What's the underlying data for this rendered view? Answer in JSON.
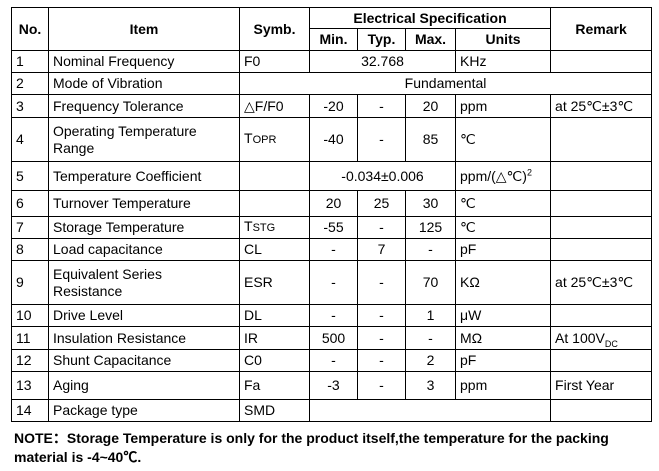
{
  "table": {
    "headers": {
      "no": "No.",
      "item": "Item",
      "symb": "Symb.",
      "elec": "Electrical Specification",
      "remark": "Remark",
      "min": "Min.",
      "typ": "Typ.",
      "max": "Max.",
      "units": "Units"
    },
    "rows": [
      {
        "no": "1",
        "item": "Nominal Frequency",
        "symb": "F0",
        "value": "32.768",
        "units": "KHz",
        "remark": ""
      },
      {
        "no": "2",
        "item": "Mode of Vibration",
        "value": "Fundamental"
      },
      {
        "no": "3",
        "item": "Frequency Tolerance",
        "symb": "△F/F0",
        "min": "-20",
        "typ": "-",
        "max": "20",
        "units": "ppm",
        "remark": "at 25℃±3℃"
      },
      {
        "no": "4",
        "item1": "Operating Temperature",
        "item2": "Range",
        "symb_main": "T",
        "symb_small": "OPR",
        "min": "-40",
        "typ": "-",
        "max": "85",
        "units": "℃",
        "remark": ""
      },
      {
        "no": "5",
        "item": "Temperature Coefficient",
        "symb": "",
        "value": "-0.034±0.006",
        "units": "ppm/(△℃)",
        "units_sup": "2",
        "remark": ""
      },
      {
        "no": "6",
        "item": "Turnover Temperature",
        "symb": "",
        "min": "20",
        "typ": "25",
        "max": "30",
        "units": "℃",
        "remark": ""
      },
      {
        "no": "7",
        "item": "Storage Temperature",
        "symb_main": "T",
        "symb_small": "STG",
        "min": "-55",
        "typ": "-",
        "max": "125",
        "units": "℃",
        "remark": ""
      },
      {
        "no": "8",
        "item": "Load capacitance",
        "symb": "CL",
        "min": "-",
        "typ": "7",
        "max": "-",
        "units": "pF",
        "remark": ""
      },
      {
        "no": "9",
        "item1": "Equivalent Series",
        "item2": "Resistance",
        "symb": "ESR",
        "min": "-",
        "typ": "-",
        "max": "70",
        "units": "KΩ",
        "remark": "at 25℃±3℃"
      },
      {
        "no": "10",
        "item": "Drive Level",
        "symb": "DL",
        "min": "-",
        "typ": "-",
        "max": "1",
        "units": "μW",
        "remark": ""
      },
      {
        "no": "11",
        "item": "Insulation Resistance",
        "symb": "IR",
        "min": "500",
        "typ": "-",
        "max": "-",
        "units": "MΩ",
        "remark_main": "At 100V",
        "remark_sub": "DC"
      },
      {
        "no": "12",
        "item": "Shunt Capacitance",
        "symb": "C0",
        "min": "-",
        "typ": "-",
        "max": "2",
        "units": "pF",
        "remark": ""
      },
      {
        "no": "13",
        "item": "Aging",
        "symb": "Fa",
        "min": "-3",
        "typ": "-",
        "max": "3",
        "units": "ppm",
        "remark": "First Year"
      },
      {
        "no": "14",
        "item": "Package type",
        "symb": "SMD",
        "remark": ""
      }
    ]
  },
  "note": "NOTE：Storage Temperature is only for the product itself,the temperature for the packing material is -4~40℃."
}
